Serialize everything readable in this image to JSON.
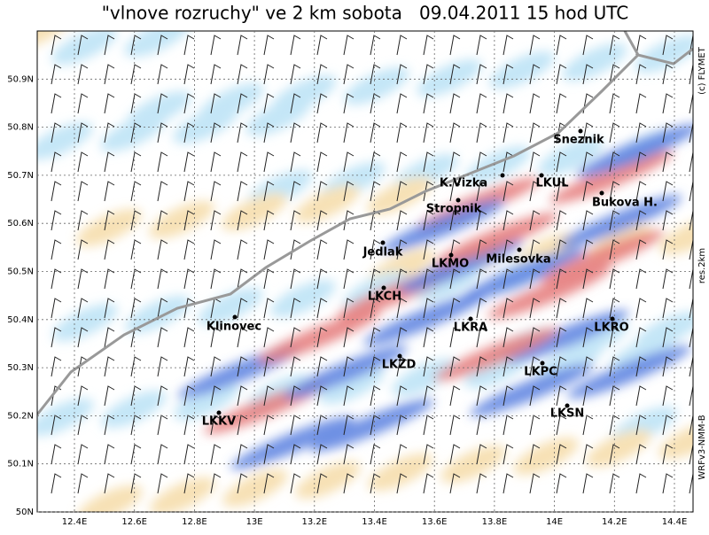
{
  "title": "\"vlnove rozruchy\" ve 2 km sobota   09.04.2011 15 hod UTC",
  "x_axis_labels": [
    "12.4E",
    "12.6E",
    "12.8E",
    "13E",
    "13.2E",
    "13.4E",
    "13.6E",
    "13.8E",
    "14E",
    "14.2E",
    "14.4E"
  ],
  "y_axis_labels": [
    "50N",
    "50.1N",
    "50.2N",
    "50.3N",
    "50.4N",
    "50.5N",
    "50.6N",
    "50.7N",
    "50.8N",
    "50.9N"
  ],
  "stations": [
    "Sneznik",
    "K.Vizka",
    "LKUL",
    "Stropnik",
    "Bukova H.",
    "Jedlak",
    "LKMO",
    "Milesovka",
    "LKCH",
    "Klinovec",
    "LKRA",
    "LKRO",
    "LKZD",
    "LKPC",
    "LKSN",
    "LKKV"
  ],
  "side_labels": [
    "(c) FLYMET",
    "res.2km",
    "WRFv3-NMM-B"
  ]
}
